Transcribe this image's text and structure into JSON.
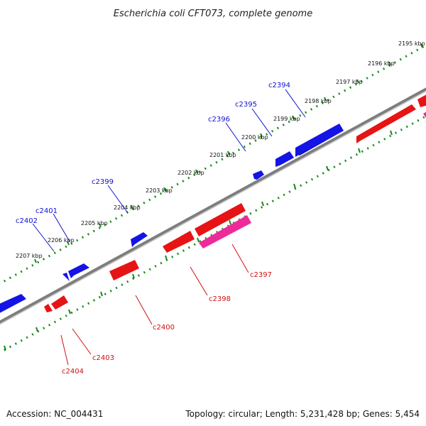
{
  "title": "Escherichia coli CFT073, complete genome",
  "footer": {
    "accession": "Accession: NC_004431",
    "topology": "Topology: circular; Length: 5,231,428 bp; Genes: 5,454"
  },
  "scale_labels": [
    "2195 kbp",
    "2196 kbp",
    "2197 kbp",
    "2198 kbp",
    "2199 kbp",
    "2200 kbp",
    "2201 kbp",
    "2202 kbp",
    "2203 kbp",
    "2204 kbp",
    "2205 kbp",
    "2206 kbp",
    "2207 kbp"
  ],
  "genes_forward": [
    "c2394",
    "c2395",
    "c2396",
    "c2399",
    "c2401",
    "c2402"
  ],
  "genes_reverse": [
    "c2397",
    "c2398",
    "c2400",
    "c2403",
    "c2404"
  ],
  "colors": {
    "forward_gene": "#1414e6",
    "reverse_gene": "#e61414",
    "rna_gene": "#ee2a9a",
    "backbone": "#8a8a8a",
    "dotted_track": "#1a8a1a"
  }
}
